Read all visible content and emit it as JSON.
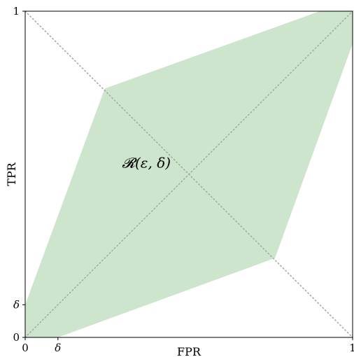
{
  "chart_data": {
    "type": "area",
    "title": "",
    "xlabel": "FPR",
    "ylabel": "TPR",
    "xlim": [
      0,
      1
    ],
    "ylim": [
      0,
      1
    ],
    "grid": false,
    "x_ticks": [
      {
        "value": 0,
        "label": "0"
      },
      {
        "value": 0.1,
        "label": "δ"
      },
      {
        "value": 1,
        "label": "1"
      }
    ],
    "y_ticks": [
      {
        "value": 0,
        "label": "0"
      },
      {
        "value": 0.1,
        "label": "δ"
      },
      {
        "value": 1,
        "label": "1"
      }
    ],
    "region": {
      "label": "𝓡(ε, δ)",
      "label_position": {
        "x": 0.37,
        "y": 0.52
      },
      "color": "#cde5cd",
      "vertices": [
        {
          "x": 0.0,
          "y": 0.1
        },
        {
          "x": 0.243,
          "y": 0.763
        },
        {
          "x": 0.9,
          "y": 1.0
        },
        {
          "x": 1.0,
          "y": 1.0
        },
        {
          "x": 1.0,
          "y": 0.9
        },
        {
          "x": 0.763,
          "y": 0.243
        },
        {
          "x": 0.1,
          "y": 0.0
        },
        {
          "x": 0.0,
          "y": 0.0
        }
      ]
    },
    "reference_lines": [
      {
        "name": "diagonal",
        "from": {
          "x": 0,
          "y": 0
        },
        "to": {
          "x": 1,
          "y": 1
        },
        "style": "dotted",
        "color": "#a8a8a8"
      },
      {
        "name": "anti-diagonal",
        "from": {
          "x": 0,
          "y": 1
        },
        "to": {
          "x": 1,
          "y": 0
        },
        "style": "dotted",
        "color": "#a8a8a8"
      }
    ]
  }
}
